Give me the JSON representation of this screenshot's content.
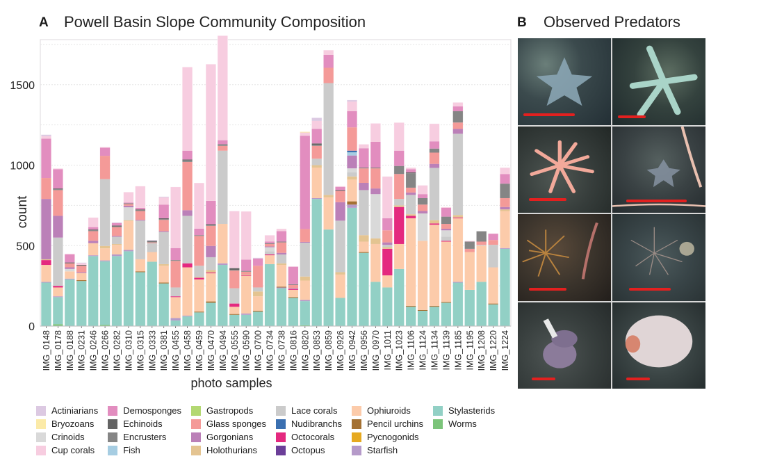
{
  "panel_a": {
    "letter": "A",
    "title": "Powell Basin Slope Community Composition"
  },
  "panel_b": {
    "letter": "B",
    "title": "Observed Predators",
    "photos": [
      {
        "subject": "cushion starfish (blue-grey)",
        "scale_bar_fraction": 0.55
      },
      {
        "subject": "starfish (pale green, slender arms)",
        "scale_bar_fraction": 0.3
      },
      {
        "subject": "starfish (pink, thin arms)",
        "scale_bar_fraction": 0.4
      },
      {
        "subject": "cushion starfish with brittle star arms",
        "scale_bar_fraction": 0.65
      },
      {
        "subject": "pycnogonid (sea spider, orange)",
        "scale_bar_fraction": 0.4
      },
      {
        "subject": "pycnogonid (sea spider, grey)",
        "scale_bar_fraction": 0.45
      },
      {
        "subject": "octopus (purple)",
        "scale_bar_fraction": 0.25
      },
      {
        "subject": "holothurian (pale, round)",
        "scale_bar_fraction": 0.25
      }
    ]
  },
  "chart_data": {
    "type": "bar",
    "stacked": true,
    "title": "Powell Basin Slope Community Composition",
    "xlabel": "photo samples",
    "ylabel": "count",
    "ylim": [
      0,
      1780
    ],
    "yticks": [
      0,
      500,
      1000,
      1500
    ],
    "grid": true,
    "legend_position": "bottom",
    "categories": [
      "IMG_0148",
      "IMG_0178",
      "IMG_0188",
      "IMG_0231",
      "IMG_0246",
      "IMG_0266",
      "IMG_0282",
      "IMG_0310",
      "IMG_0315",
      "IMG_0333",
      "IMG_0381",
      "IMG_0455",
      "IMG_0458",
      "IMG_0459",
      "IMG_0470",
      "IMG_0494",
      "IMG_0555",
      "IMG_0590",
      "IMG_0700",
      "IMG_0734",
      "IMG_0738",
      "IMG_0816",
      "IMG_0820",
      "IMG_0853",
      "IMG_0859",
      "IMG_0926",
      "IMG_0942",
      "IMG_0956",
      "IMG_0970",
      "IMG_1011",
      "IMG_1023",
      "IMG_1106",
      "IMG_1124",
      "IMG_1134",
      "IMG_1139",
      "IMG_1185",
      "IMG_1195",
      "IMG_1208",
      "IMG_1220",
      "IMG_1224"
    ],
    "legend": [
      {
        "name": "Actiniarians",
        "color": "#dcc9e2"
      },
      {
        "name": "Bryozoans",
        "color": "#fbeaa8"
      },
      {
        "name": "Crinoids",
        "color": "#d9d9d9"
      },
      {
        "name": "Cup corals",
        "color": "#f7cde0"
      },
      {
        "name": "Demosponges",
        "color": "#e28dbf"
      },
      {
        "name": "Echinoids",
        "color": "#636363"
      },
      {
        "name": "Encrusters",
        "color": "#858585"
      },
      {
        "name": "Fish",
        "color": "#a6cde2"
      },
      {
        "name": "Gastropods",
        "color": "#b3d872"
      },
      {
        "name": "Glass sponges",
        "color": "#f49a98"
      },
      {
        "name": "Gorgonians",
        "color": "#bb80b8"
      },
      {
        "name": "Holothurians",
        "color": "#e4c491"
      },
      {
        "name": "Lace corals",
        "color": "#cbcbcb"
      },
      {
        "name": "Nudibranchs",
        "color": "#3a6fb0"
      },
      {
        "name": "Octocorals",
        "color": "#e4297f"
      },
      {
        "name": "Octopus",
        "color": "#6b3e98"
      },
      {
        "name": "Ophiuroids",
        "color": "#fccbaa"
      },
      {
        "name": "Pencil urchins",
        "color": "#a47133"
      },
      {
        "name": "Pycnogonids",
        "color": "#e6a920"
      },
      {
        "name": "Starfish",
        "color": "#b59ac9"
      },
      {
        "name": "Stylasterids",
        "color": "#92d0c5"
      },
      {
        "name": "Worms",
        "color": "#7bc47a"
      }
    ],
    "stack_order": [
      "Worms",
      "Stylasterids",
      "Starfish",
      "Pencil urchins",
      "Ophiuroids",
      "Octocorals",
      "Holothurians",
      "Lace corals",
      "Crinoids",
      "Gorgonians",
      "Fish",
      "Nudibranchs",
      "Glass sponges",
      "Encrusters",
      "Echinoids",
      "Demosponges",
      "Cup corals",
      "Bryozoans",
      "Actiniarians"
    ],
    "series": [
      {
        "name": "Worms",
        "values": [
          0,
          12,
          0,
          0,
          0,
          8,
          0,
          0,
          0,
          0,
          0,
          0,
          0,
          0,
          0,
          0,
          0,
          0,
          0,
          0,
          0,
          0,
          5,
          0,
          0,
          0,
          0,
          0,
          0,
          0,
          0,
          0,
          0,
          0,
          0,
          0,
          0,
          0,
          0,
          0
        ]
      },
      {
        "name": "Stylasterids",
        "values": [
          270,
          168,
          290,
          280,
          435,
          395,
          435,
          465,
          335,
          400,
          265,
          35,
          60,
          85,
          145,
          380,
          70,
          70,
          90,
          385,
          235,
          175,
          150,
          790,
          600,
          175,
          735,
          455,
          275,
          240,
          355,
          120,
          95,
          120,
          145,
          270,
          225,
          275,
          135,
          480
        ]
      },
      {
        "name": "Starfish",
        "values": [
          5,
          5,
          5,
          0,
          5,
          5,
          10,
          8,
          0,
          0,
          0,
          15,
          5,
          0,
          0,
          10,
          0,
          8,
          0,
          0,
          5,
          0,
          8,
          5,
          0,
          0,
          20,
          0,
          0,
          0,
          0,
          0,
          0,
          0,
          0,
          5,
          0,
          0,
          0,
          5
        ]
      },
      {
        "name": "Pencil urchins",
        "values": [
          0,
          0,
          0,
          5,
          0,
          0,
          0,
          0,
          5,
          0,
          5,
          0,
          0,
          5,
          8,
          0,
          5,
          0,
          5,
          0,
          5,
          5,
          0,
          0,
          0,
          0,
          20,
          5,
          0,
          0,
          0,
          5,
          5,
          5,
          5,
          0,
          0,
          0,
          5,
          0
        ]
      },
      {
        "name": "Ophiuroids",
        "values": [
          105,
          55,
          45,
          45,
          75,
          75,
          60,
          180,
          75,
          60,
          105,
          130,
          300,
          200,
          175,
          245,
          45,
          235,
          90,
          55,
          135,
          45,
          120,
          190,
          200,
          145,
          135,
          65,
          235,
          75,
          155,
          545,
          430,
          505,
          375,
          395,
          235,
          225,
          225,
          230
        ]
      },
      {
        "name": "Octocorals",
        "values": [
          30,
          10,
          0,
          0,
          0,
          0,
          0,
          0,
          0,
          0,
          0,
          5,
          25,
          10,
          5,
          0,
          20,
          5,
          0,
          5,
          0,
          5,
          0,
          0,
          0,
          0,
          0,
          0,
          0,
          165,
          230,
          15,
          0,
          8,
          5,
          5,
          0,
          0,
          0,
          0
        ]
      },
      {
        "name": "Holothurians",
        "values": [
          5,
          0,
          0,
          0,
          0,
          15,
          5,
          5,
          0,
          0,
          10,
          0,
          0,
          5,
          15,
          0,
          0,
          5,
          30,
          0,
          10,
          0,
          25,
          15,
          15,
          15,
          20,
          40,
          35,
          10,
          10,
          10,
          0,
          20,
          0,
          15,
          0,
          0,
          0,
          10
        ]
      },
      {
        "name": "Lace corals",
        "values": [
          0,
          300,
          0,
          0,
          0,
          415,
          45,
          0,
          240,
          55,
          200,
          55,
          295,
          70,
          80,
          455,
          95,
          0,
          25,
          20,
          55,
          0,
          210,
          40,
          695,
          320,
          25,
          280,
          0,
          15,
          40,
          120,
          0,
          325,
          25,
          505,
          0,
          5,
          140,
          0
        ]
      },
      {
        "name": "Crinoids",
        "values": [
          0,
          0,
          15,
          0,
          0,
          0,
          0,
          80,
          0,
          0,
          0,
          0,
          0,
          0,
          0,
          0,
          0,
          0,
          0,
          25,
          0,
          0,
          0,
          0,
          0,
          0,
          25,
          0,
          275,
          0,
          0,
          0,
          170,
          0,
          40,
          0,
          0,
          0,
          0,
          0
        ]
      },
      {
        "name": "Gorgonians",
        "values": [
          375,
          135,
          10,
          5,
          15,
          0,
          5,
          10,
          5,
          0,
          5,
          0,
          35,
          0,
          70,
          0,
          0,
          0,
          0,
          5,
          10,
          5,
          5,
          0,
          0,
          115,
          80,
          45,
          35,
          15,
          0,
          15,
          15,
          25,
          10,
          30,
          0,
          0,
          0,
          15
        ]
      },
      {
        "name": "Fish",
        "values": [
          0,
          0,
          0,
          0,
          0,
          0,
          0,
          0,
          0,
          0,
          0,
          0,
          0,
          0,
          0,
          0,
          0,
          0,
          0,
          0,
          0,
          0,
          0,
          0,
          0,
          0,
          20,
          0,
          0,
          0,
          0,
          0,
          0,
          0,
          0,
          0,
          0,
          0,
          0,
          0
        ]
      },
      {
        "name": "Nudibranchs",
        "values": [
          0,
          0,
          0,
          0,
          0,
          0,
          0,
          0,
          0,
          0,
          0,
          0,
          0,
          0,
          0,
          0,
          0,
          0,
          0,
          0,
          0,
          0,
          0,
          0,
          0,
          0,
          10,
          0,
          0,
          0,
          0,
          0,
          0,
          0,
          0,
          0,
          0,
          0,
          0,
          0
        ]
      },
      {
        "name": "Glass sponges",
        "values": [
          130,
          160,
          25,
          40,
          60,
          145,
          55,
          10,
          55,
          5,
          70,
          165,
          300,
          185,
          125,
          30,
          110,
          15,
          135,
          15,
          65,
          20,
          80,
          80,
          95,
          70,
          145,
          90,
          125,
          75,
          155,
          30,
          40,
          70,
          30,
          40,
          20,
          20,
          30,
          55
        ]
      },
      {
        "name": "Encrusters",
        "values": [
          0,
          5,
          0,
          0,
          5,
          0,
          5,
          5,
          5,
          5,
          5,
          5,
          10,
          5,
          5,
          10,
          5,
          5,
          0,
          5,
          5,
          5,
          0,
          5,
          0,
          0,
          0,
          5,
          5,
          0,
          50,
          90,
          40,
          25,
          45,
          70,
          45,
          65,
          0,
          90
        ]
      },
      {
        "name": "Echinoids",
        "values": [
          0,
          5,
          5,
          5,
          5,
          0,
          5,
          0,
          5,
          5,
          5,
          0,
          5,
          0,
          5,
          0,
          10,
          0,
          0,
          0,
          0,
          0,
          0,
          10,
          0,
          5,
          0,
          0,
          0,
          0,
          0,
          5,
          0,
          0,
          0,
          0,
          0,
          0,
          0,
          0
        ]
      },
      {
        "name": "Demosponges",
        "values": [
          245,
          120,
          50,
          0,
          15,
          50,
          15,
          5,
          10,
          0,
          85,
          75,
          55,
          40,
          145,
          25,
          0,
          70,
          45,
          10,
          65,
          110,
          580,
          90,
          80,
          20,
          100,
          120,
          160,
          75,
          95,
          20,
          25,
          45,
          55,
          30,
          0,
          0,
          40,
          60
        ]
      },
      {
        "name": "Cup corals",
        "values": [
          15,
          5,
          5,
          10,
          60,
          5,
          0,
          65,
          135,
          0,
          45,
          380,
          520,
          285,
          850,
          650,
          355,
          300,
          0,
          40,
          15,
          0,
          20,
          50,
          30,
          5,
          60,
          25,
          115,
          260,
          175,
          10,
          55,
          110,
          5,
          25,
          5,
          0,
          0,
          40
        ]
      },
      {
        "name": "Bryozoans",
        "values": [
          0,
          0,
          0,
          0,
          0,
          0,
          0,
          0,
          0,
          0,
          0,
          0,
          0,
          0,
          0,
          0,
          0,
          0,
          0,
          0,
          0,
          0,
          5,
          0,
          0,
          0,
          0,
          0,
          0,
          0,
          0,
          0,
          0,
          0,
          0,
          0,
          0,
          0,
          0,
          0
        ]
      },
      {
        "name": "Actiniarians",
        "values": [
          10,
          0,
          0,
          5,
          0,
          0,
          5,
          0,
          0,
          5,
          5,
          0,
          0,
          0,
          0,
          0,
          0,
          0,
          5,
          0,
          0,
          0,
          0,
          20,
          0,
          0,
          10,
          0,
          0,
          0,
          0,
          0,
          0,
          0,
          0,
          0,
          0,
          0,
          0,
          0
        ]
      }
    ]
  }
}
